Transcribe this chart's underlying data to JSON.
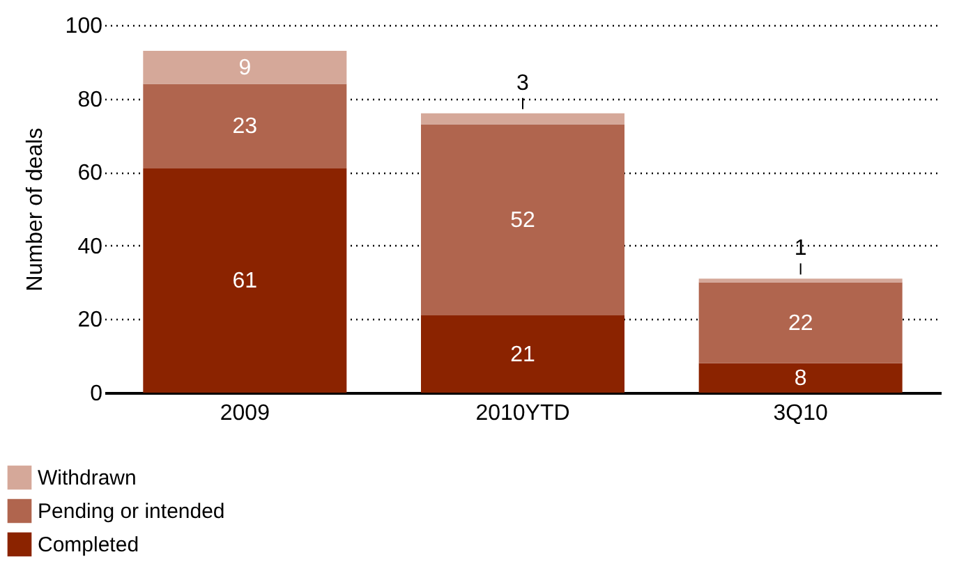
{
  "chart_data": {
    "type": "bar",
    "stacked": true,
    "ylabel": "Number of deals",
    "categories": [
      "2009",
      "2010YTD",
      "3Q10"
    ],
    "series": [
      {
        "name": "Completed",
        "color": "#8b2300",
        "values": [
          61,
          21,
          8
        ]
      },
      {
        "name": "Pending or intended",
        "color": "#b0654e",
        "values": [
          23,
          52,
          22
        ]
      },
      {
        "name": "Withdrawn",
        "color": "#d5a899",
        "values": [
          9,
          3,
          1
        ]
      }
    ],
    "ylim": [
      0,
      100
    ],
    "yticks": [
      0,
      20,
      40,
      60,
      80,
      100
    ],
    "grid": "y",
    "line_style": "dotted",
    "data_labels": true,
    "legend": "bottom left"
  }
}
